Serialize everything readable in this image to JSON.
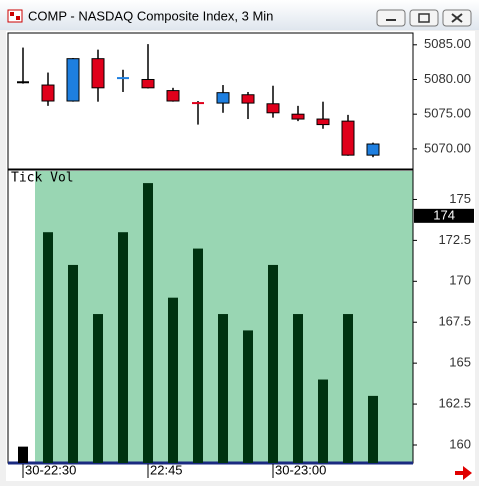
{
  "window": {
    "title": "COMP - NASDAQ Composite Index, 3 Min"
  },
  "chart_data": [
    {
      "type": "candlestick",
      "open": [
        5079.6,
        5079.2,
        5076.9,
        5083,
        5080.2,
        5080,
        5078.4,
        5076.6,
        5076.6,
        5077.8,
        5076.5,
        5075,
        5074.3,
        5074,
        5069.1
      ],
      "high": [
        5084.6,
        5081,
        5083.1,
        5084.3,
        5081.4,
        5085.1,
        5078.8,
        5076.9,
        5079.2,
        5078.2,
        5079.1,
        5076.2,
        5076.8,
        5074.9,
        5070.9
      ],
      "low": [
        5079.4,
        5076.2,
        5076.8,
        5076.8,
        5078.2,
        5078.7,
        5076.8,
        5073.5,
        5075.2,
        5074.3,
        5074.5,
        5074,
        5072.9,
        5069,
        5068.8
      ],
      "close": [
        5079.6,
        5076.9,
        5083,
        5078.8,
        5080.2,
        5078.8,
        5076.9,
        5076.5,
        5078.1,
        5076.6,
        5075.2,
        5074.3,
        5073.5,
        5069.1,
        5070.7
      ],
      "colors": [
        "#000000",
        "#e0001b",
        "#1e7fe0",
        "#e0001b",
        "#1e7fe0",
        "#e0001b",
        "#e0001b",
        "#e0001b",
        "#1e7fe0",
        "#e0001b",
        "#e0001b",
        "#e0001b",
        "#e0001b",
        "#e0001b",
        "#1e7fe0"
      ],
      "ylim": [
        5067.1,
        5086.7
      ],
      "yticks": [
        {
          "value": 5070,
          "label": "5070.00"
        },
        {
          "value": 5075,
          "label": "5075.00"
        },
        {
          "value": 5080,
          "label": "5080.00"
        },
        {
          "value": 5085,
          "label": "5085.00"
        }
      ]
    },
    {
      "type": "bar",
      "title": "Tick Vol",
      "categories": [
        "30-22:30",
        null,
        null,
        null,
        null,
        "22:45",
        null,
        null,
        null,
        null,
        "30-23:00",
        null,
        null,
        null,
        null
      ],
      "values": [
        159.9,
        173,
        171,
        168,
        173,
        176,
        169,
        172,
        168,
        167,
        171,
        168,
        164,
        168,
        163
      ],
      "colors": [
        "#000000",
        "#003311",
        "#003311",
        "#003311",
        "#003311",
        "#003311",
        "#003311",
        "#003311",
        "#003311",
        "#003311",
        "#003311",
        "#003311",
        "#003311",
        "#003311",
        "#003311"
      ],
      "background": "#99d6b3",
      "current_value": 174,
      "ylim": [
        158.9,
        176.8
      ],
      "yticks": [
        160,
        162.5,
        165,
        167.5,
        170,
        172.5,
        175
      ]
    }
  ]
}
